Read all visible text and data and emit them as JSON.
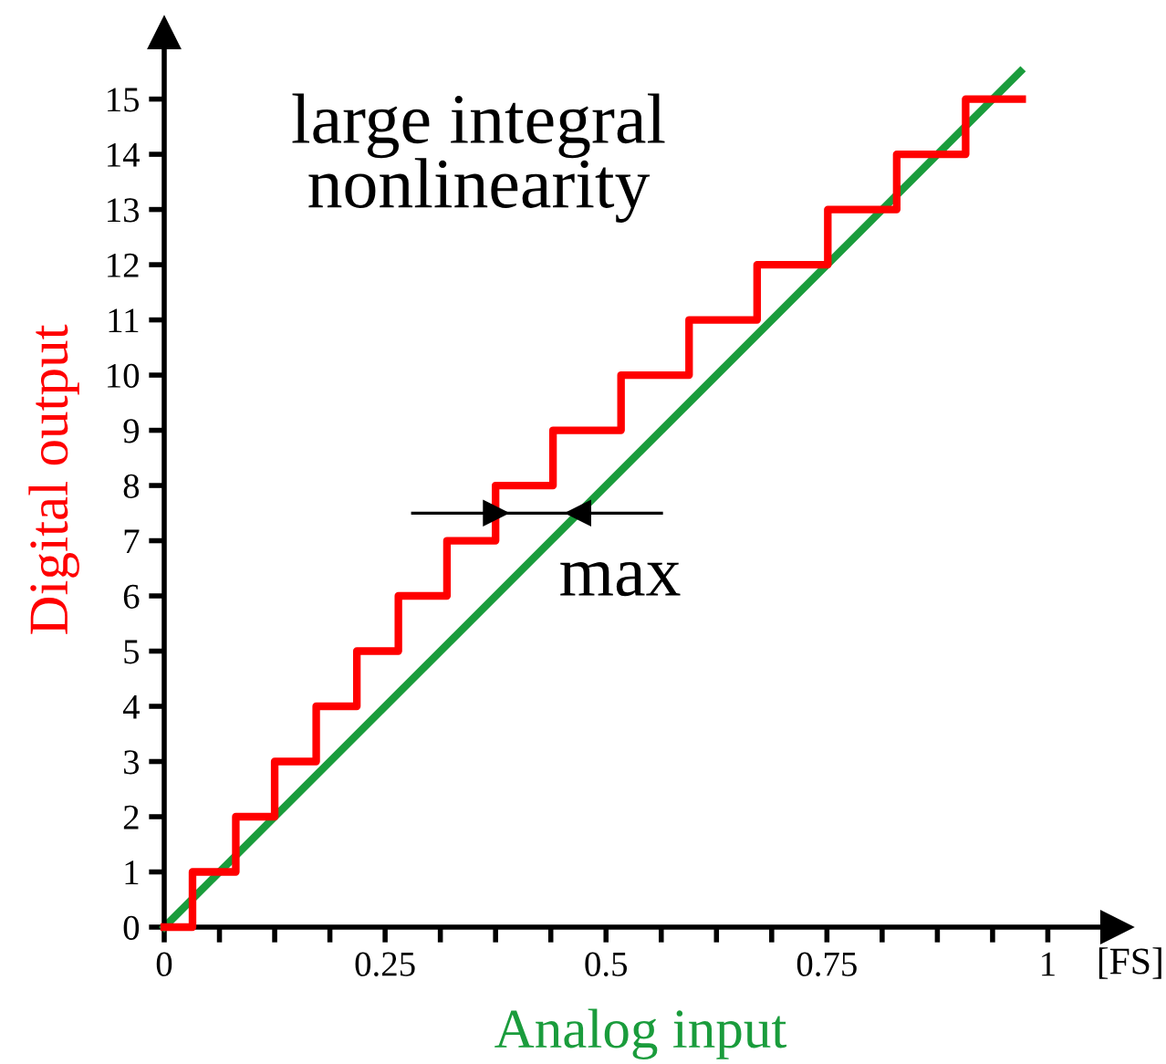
{
  "chart_data": {
    "type": "step",
    "xlabel": "Analog input",
    "ylabel": "Digital output",
    "series": [
      {
        "color": "#ff0000",
        "x": [
          0,
          0.032,
          0.081,
          0.125,
          0.172,
          0.218,
          0.265,
          0.32,
          0.375,
          0.44,
          0.517,
          0.594,
          0.671,
          0.751,
          0.829,
          0.907,
          0.971
        ],
        "values": [
          0,
          1,
          2,
          3,
          4,
          5,
          6,
          7,
          8,
          9,
          10,
          11,
          12,
          13,
          14,
          15,
          15
        ]
      },
      {
        "type": "line",
        "color": "#1a9c3c",
        "x": [
          0,
          0.969
        ],
        "values": [
          0,
          15.5
        ]
      }
    ],
    "xlim": [
      0,
      1.078
    ],
    "ylim": [
      0,
      16.2
    ],
    "xticks": [
      0,
      {
        "value": 0.0625,
        "label": null
      },
      {
        "value": 0.125,
        "label": null
      },
      {
        "value": 0.1875,
        "label": null
      },
      0.25,
      {
        "value": 0.3125,
        "label": null
      },
      {
        "value": 0.375,
        "label": null
      },
      {
        "value": 0.4375,
        "label": null
      },
      0.5,
      {
        "value": 0.5625,
        "label": null
      },
      {
        "value": 0.625,
        "label": null
      },
      {
        "value": 0.6875,
        "label": null
      },
      0.75,
      {
        "value": 0.8125,
        "label": null
      },
      {
        "value": 0.875,
        "label": null
      },
      {
        "value": 0.9375,
        "label": null
      },
      1
    ],
    "yticks": [
      0,
      1,
      2,
      3,
      4,
      5,
      6,
      7,
      8,
      9,
      10,
      11,
      12,
      13,
      14,
      15
    ],
    "annotations": [
      "large integral\nnonlinearity",
      "max",
      "[FS]"
    ],
    "grid": false,
    "marker": "none",
    "line_style": "solid"
  }
}
